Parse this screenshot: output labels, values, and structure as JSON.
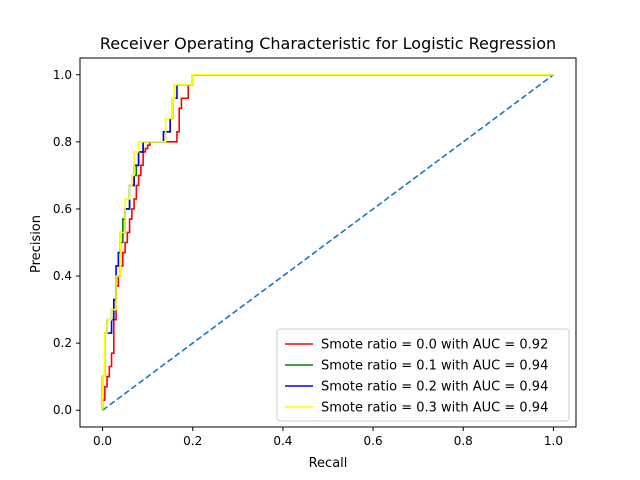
{
  "chart_data": {
    "type": "line",
    "title": "Receiver Operating Characteristic for Logistic Regression",
    "xlabel": "Recall",
    "ylabel": "Precision",
    "xlim": [
      -0.05,
      1.05
    ],
    "ylim": [
      -0.05,
      1.05
    ],
    "xticks": [
      "0.0",
      "0.2",
      "0.4",
      "0.6",
      "0.8",
      "1.0"
    ],
    "yticks": [
      "0.0",
      "0.2",
      "0.4",
      "0.6",
      "0.8",
      "1.0"
    ],
    "grid": false,
    "legend_position": "lower-right",
    "reference_line": {
      "x": [
        0,
        1
      ],
      "y": [
        0,
        1
      ],
      "color": "#1f77b4",
      "style": "dashed"
    },
    "series": [
      {
        "name": "Smote ratio = 0.0 with AUC = 0.92",
        "color": "#ff0000",
        "x": [
          0,
          0,
          0.005,
          0.005,
          0.01,
          0.01,
          0.015,
          0.015,
          0.02,
          0.02,
          0.025,
          0.025,
          0.03,
          0.03,
          0.035,
          0.035,
          0.04,
          0.04,
          0.045,
          0.045,
          0.05,
          0.05,
          0.055,
          0.055,
          0.06,
          0.06,
          0.065,
          0.065,
          0.07,
          0.07,
          0.075,
          0.075,
          0.08,
          0.08,
          0.085,
          0.085,
          0.09,
          0.09,
          0.095,
          0.095,
          0.1,
          0.1,
          0.105,
          0.105,
          0.11,
          0.11,
          0.12,
          0.12,
          0.165,
          0.165,
          0.17,
          0.17,
          0.175,
          0.175,
          0.19,
          0.19,
          0.2,
          0.2,
          1.0
        ],
        "y": [
          0,
          0.03,
          0.03,
          0.07,
          0.07,
          0.1,
          0.1,
          0.13,
          0.13,
          0.17,
          0.17,
          0.27,
          0.27,
          0.37,
          0.37,
          0.4,
          0.4,
          0.43,
          0.43,
          0.47,
          0.47,
          0.5,
          0.5,
          0.53,
          0.53,
          0.57,
          0.57,
          0.6,
          0.6,
          0.63,
          0.63,
          0.67,
          0.67,
          0.7,
          0.7,
          0.73,
          0.73,
          0.77,
          0.77,
          0.78,
          0.78,
          0.79,
          0.79,
          0.8,
          0.8,
          0.8,
          0.8,
          0.8,
          0.8,
          0.83,
          0.83,
          0.9,
          0.9,
          0.93,
          0.93,
          0.97,
          0.97,
          1.0,
          1.0
        ]
      },
      {
        "name": "Smote ratio = 0.1 with AUC = 0.94",
        "color": "#008000",
        "x": [
          0,
          0,
          0.005,
          0.005,
          0.01,
          0.01,
          0.02,
          0.02,
          0.025,
          0.025,
          0.03,
          0.03,
          0.04,
          0.04,
          0.045,
          0.045,
          0.05,
          0.05,
          0.06,
          0.06,
          0.07,
          0.07,
          0.075,
          0.075,
          0.08,
          0.08,
          0.09,
          0.09,
          0.1,
          0.1,
          0.14,
          0.14,
          0.15,
          0.15,
          0.155,
          0.155,
          0.16,
          0.16,
          0.17,
          0.17,
          0.19,
          0.19,
          0.2,
          0.2,
          1.0
        ],
        "y": [
          0,
          0.1,
          0.1,
          0.23,
          0.23,
          0.27,
          0.27,
          0.3,
          0.3,
          0.33,
          0.33,
          0.4,
          0.4,
          0.5,
          0.5,
          0.57,
          0.57,
          0.6,
          0.6,
          0.67,
          0.67,
          0.7,
          0.7,
          0.73,
          0.73,
          0.77,
          0.77,
          0.8,
          0.8,
          0.8,
          0.8,
          0.83,
          0.83,
          0.87,
          0.87,
          0.93,
          0.93,
          0.97,
          0.97,
          0.97,
          0.97,
          0.97,
          0.97,
          1.0,
          1.0
        ]
      },
      {
        "name": "Smote ratio = 0.2 with AUC = 0.94",
        "color": "#0000ff",
        "x": [
          0,
          0,
          0.005,
          0.005,
          0.02,
          0.02,
          0.025,
          0.025,
          0.03,
          0.03,
          0.035,
          0.035,
          0.04,
          0.04,
          0.05,
          0.05,
          0.06,
          0.06,
          0.07,
          0.07,
          0.08,
          0.08,
          0.09,
          0.09,
          0.1,
          0.1,
          0.135,
          0.135,
          0.15,
          0.15,
          0.155,
          0.155,
          0.165,
          0.165,
          0.17,
          0.17,
          0.2,
          0.2,
          1.0
        ],
        "y": [
          0,
          0.1,
          0.1,
          0.23,
          0.23,
          0.27,
          0.27,
          0.33,
          0.33,
          0.43,
          0.43,
          0.47,
          0.47,
          0.53,
          0.53,
          0.6,
          0.6,
          0.67,
          0.67,
          0.73,
          0.73,
          0.77,
          0.77,
          0.8,
          0.8,
          0.8,
          0.8,
          0.83,
          0.83,
          0.87,
          0.87,
          0.93,
          0.93,
          0.97,
          0.97,
          0.97,
          0.97,
          1.0,
          1.0
        ]
      },
      {
        "name": "Smote ratio = 0.3 with AUC = 0.94",
        "color": "#ffff00",
        "x": [
          0,
          0,
          0.005,
          0.005,
          0.01,
          0.01,
          0.02,
          0.02,
          0.03,
          0.03,
          0.04,
          0.04,
          0.05,
          0.05,
          0.06,
          0.06,
          0.065,
          0.065,
          0.07,
          0.07,
          0.08,
          0.08,
          0.09,
          0.09,
          0.1,
          0.1,
          0.14,
          0.14,
          0.155,
          0.155,
          0.16,
          0.16,
          0.19,
          0.19,
          0.2,
          0.2,
          1.0
        ],
        "y": [
          0,
          0.1,
          0.1,
          0.23,
          0.23,
          0.27,
          0.27,
          0.3,
          0.3,
          0.4,
          0.4,
          0.53,
          0.53,
          0.63,
          0.63,
          0.67,
          0.67,
          0.7,
          0.7,
          0.77,
          0.77,
          0.8,
          0.8,
          0.8,
          0.8,
          0.8,
          0.8,
          0.87,
          0.87,
          0.93,
          0.93,
          0.97,
          0.97,
          0.97,
          0.97,
          1.0,
          1.0
        ]
      }
    ]
  }
}
